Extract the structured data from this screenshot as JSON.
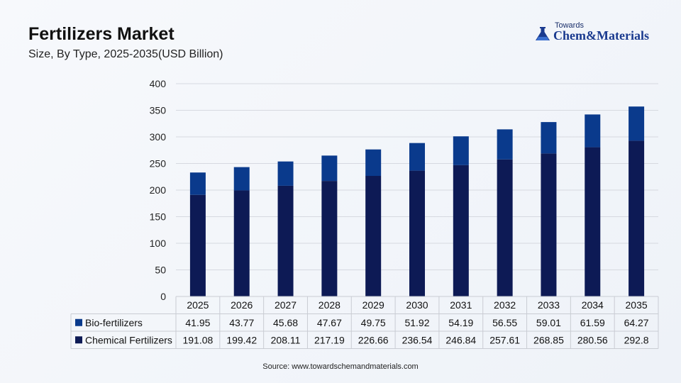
{
  "header": {
    "title": "Fertilizers Market",
    "subtitle": "Size, By Type, 2025-2035(USD Billion)"
  },
  "logo": {
    "small_text": "Towards",
    "brand_first": "Chem",
    "brand_amp": "&",
    "brand_last": "Materials",
    "icon": "flask-icon"
  },
  "source": "Source: www.towardschemandmaterials.com",
  "colors": {
    "bio": "#0a3a8c",
    "chemical": "#0d1a55",
    "grid": "#d6d9e0",
    "table_border": "#c9ccd3"
  },
  "chart_data": {
    "type": "bar",
    "stacked": true,
    "categories": [
      "2025",
      "2026",
      "2027",
      "2028",
      "2029",
      "2030",
      "2031",
      "2032",
      "2033",
      "2034",
      "2035"
    ],
    "yticks": [
      "0",
      "50",
      "100",
      "150",
      "200",
      "250",
      "300",
      "350",
      "400"
    ],
    "ylim": [
      0,
      400
    ],
    "grid": true,
    "legend": "table-below",
    "series": [
      {
        "name": "Chemical Fertilizers",
        "values": [
          191.08,
          199.42,
          208.11,
          217.19,
          226.66,
          236.54,
          246.84,
          257.61,
          268.85,
          280.56,
          292.8
        ],
        "labels": [
          "191.08",
          "199.42",
          "208.11",
          "217.19",
          "226.66",
          "236.54",
          "246.84",
          "257.61",
          "268.85",
          "280.56",
          "292.8"
        ]
      },
      {
        "name": "Bio-fertilizers",
        "values": [
          41.95,
          43.77,
          45.68,
          47.67,
          49.75,
          51.92,
          54.19,
          56.55,
          59.01,
          61.59,
          64.27
        ],
        "labels": [
          "41.95",
          "43.77",
          "45.68",
          "47.67",
          "49.75",
          "51.92",
          "54.19",
          "56.55",
          "59.01",
          "61.59",
          "64.27"
        ]
      }
    ]
  }
}
